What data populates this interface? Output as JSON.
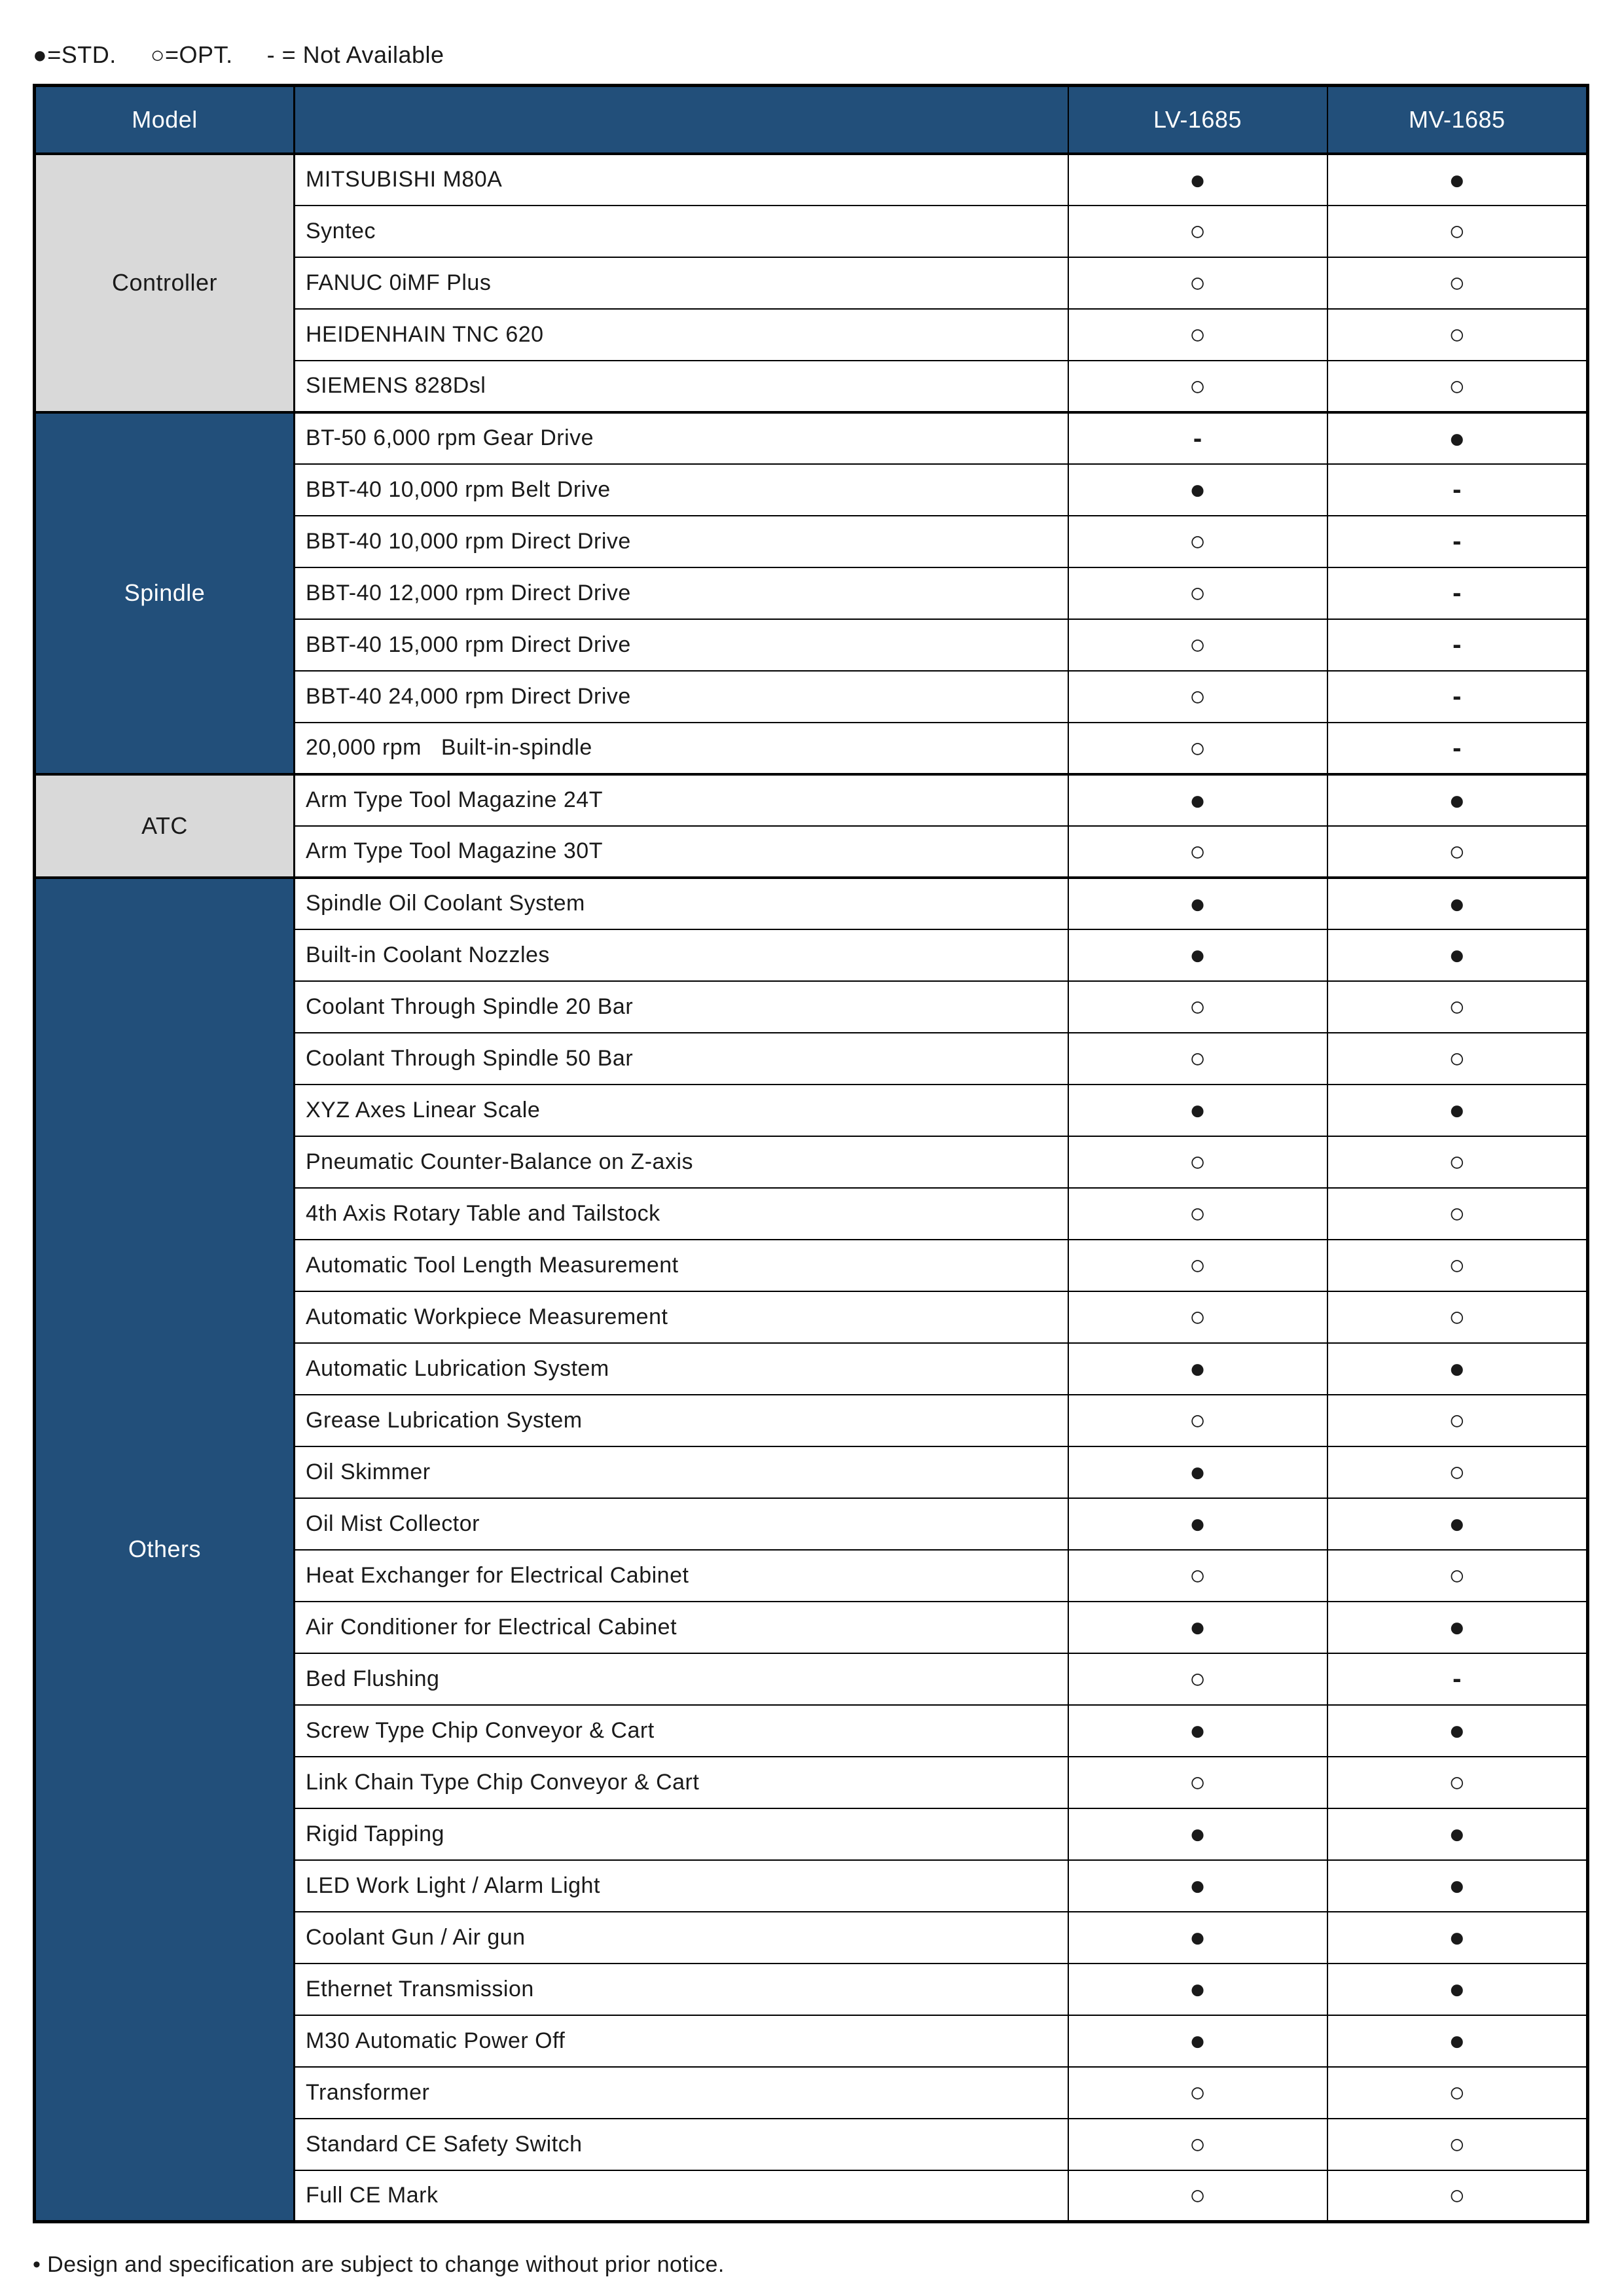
{
  "legend": {
    "std": "●=STD.",
    "opt": "○=OPT.",
    "na": "- = Not Available"
  },
  "header": {
    "model_label": "Model",
    "columns": [
      "LV-1685",
      "MV-1685"
    ]
  },
  "symbols": {
    "std": "●",
    "opt": "○",
    "na": "-"
  },
  "colors": {
    "header_blue": "#224f7a",
    "category_gray": "#d9d9d9",
    "header_text": "#ffffff",
    "body_text": "#1a1a1a",
    "border": "#000000"
  },
  "sections": [
    {
      "name": "Controller",
      "style": "gray",
      "rows": [
        {
          "feature": "MITSUBISHI M80A",
          "lv": "std",
          "mv": "std"
        },
        {
          "feature": "Syntec",
          "lv": "opt",
          "mv": "opt"
        },
        {
          "feature": "FANUC 0iMF Plus",
          "lv": "opt",
          "mv": "opt"
        },
        {
          "feature": "HEIDENHAIN TNC 620",
          "lv": "opt",
          "mv": "opt"
        },
        {
          "feature": "SIEMENS 828Dsl",
          "lv": "opt",
          "mv": "opt"
        }
      ]
    },
    {
      "name": "Spindle",
      "style": "blue",
      "rows": [
        {
          "feature": "BT-50 6,000 rpm Gear Drive",
          "lv": "na",
          "mv": "std"
        },
        {
          "feature": "BBT-40 10,000 rpm Belt Drive",
          "lv": "std",
          "mv": "na"
        },
        {
          "feature": "BBT-40 10,000 rpm Direct Drive",
          "lv": "opt",
          "mv": "na"
        },
        {
          "feature": "BBT-40 12,000 rpm Direct Drive",
          "lv": "opt",
          "mv": "na"
        },
        {
          "feature": "BBT-40 15,000 rpm Direct Drive",
          "lv": "opt",
          "mv": "na"
        },
        {
          "feature": "BBT-40 24,000 rpm Direct Drive",
          "lv": "opt",
          "mv": "na"
        },
        {
          "feature": "20,000 rpm   Built-in-spindle",
          "lv": "opt",
          "mv": "na"
        }
      ]
    },
    {
      "name": "ATC",
      "style": "gray",
      "rows": [
        {
          "feature": "Arm Type Tool Magazine 24T",
          "lv": "std",
          "mv": "std"
        },
        {
          "feature": "Arm Type Tool Magazine 30T",
          "lv": "opt",
          "mv": "opt"
        }
      ]
    },
    {
      "name": "Others",
      "style": "blue",
      "rows": [
        {
          "feature": "Spindle Oil Coolant System",
          "lv": "std",
          "mv": "std"
        },
        {
          "feature": "Built-in Coolant Nozzles",
          "lv": "std",
          "mv": "std"
        },
        {
          "feature": "Coolant Through Spindle 20 Bar",
          "lv": "opt",
          "mv": "opt"
        },
        {
          "feature": "Coolant Through Spindle 50 Bar",
          "lv": "opt",
          "mv": "opt"
        },
        {
          "feature": "XYZ Axes Linear Scale",
          "lv": "std",
          "mv": "std"
        },
        {
          "feature": "Pneumatic Counter-Balance on Z-axis",
          "lv": "opt",
          "mv": "opt"
        },
        {
          "feature": "4th Axis Rotary Table and Tailstock",
          "lv": "opt",
          "mv": "opt"
        },
        {
          "feature": "Automatic Tool Length Measurement",
          "lv": "opt",
          "mv": "opt"
        },
        {
          "feature": "Automatic Workpiece Measurement",
          "lv": "opt",
          "mv": "opt"
        },
        {
          "feature": "Automatic Lubrication System",
          "lv": "std",
          "mv": "std"
        },
        {
          "feature": "Grease Lubrication System",
          "lv": "opt",
          "mv": "opt"
        },
        {
          "feature": "Oil Skimmer",
          "lv": "std",
          "mv": "opt"
        },
        {
          "feature": "Oil Mist Collector",
          "lv": "std",
          "mv": "std"
        },
        {
          "feature": "Heat Exchanger for Electrical Cabinet",
          "lv": "opt",
          "mv": "opt"
        },
        {
          "feature": "Air Conditioner for Electrical Cabinet",
          "lv": "std",
          "mv": "std"
        },
        {
          "feature": "Bed Flushing",
          "lv": "opt",
          "mv": "na"
        },
        {
          "feature": "Screw Type Chip Conveyor & Cart",
          "lv": "std",
          "mv": "std"
        },
        {
          "feature": "Link Chain Type Chip Conveyor & Cart",
          "lv": "opt",
          "mv": "opt"
        },
        {
          "feature": "Rigid Tapping",
          "lv": "std",
          "mv": "std"
        },
        {
          "feature": "LED Work Light / Alarm Light",
          "lv": "std",
          "mv": "std"
        },
        {
          "feature": "Coolant Gun / Air gun",
          "lv": "std",
          "mv": "std"
        },
        {
          "feature": "Ethernet Transmission",
          "lv": "std",
          "mv": "std"
        },
        {
          "feature": "M30 Automatic Power Off",
          "lv": "std",
          "mv": "std"
        },
        {
          "feature": "Transformer",
          "lv": "opt",
          "mv": "opt"
        },
        {
          "feature": "Standard CE Safety Switch",
          "lv": "opt",
          "mv": "opt"
        },
        {
          "feature": "Full CE Mark",
          "lv": "opt",
          "mv": "opt"
        }
      ]
    }
  ],
  "footer": {
    "note": "• Design and specification are subject to change without prior notice."
  }
}
